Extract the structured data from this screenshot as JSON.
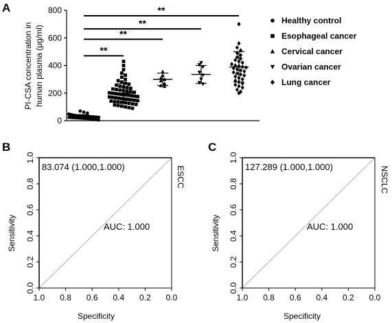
{
  "chart_data": [
    {
      "panel": "A",
      "type": "scatter",
      "ylabel_line1": "PI-CSA concentration in",
      "ylabel_line2": "human plasma (μg/ml)",
      "ylim": [
        0,
        800
      ],
      "y_ticks": [
        "0",
        "200",
        "400",
        "600",
        "800"
      ],
      "y_tick_values": [
        0,
        200,
        400,
        600,
        800
      ],
      "groups": [
        {
          "name": "Healthy control",
          "marker": "circle",
          "mean": 30,
          "sd": 14,
          "values": [
            70,
            62,
            55,
            48,
            45,
            42,
            40,
            38,
            36,
            35,
            34,
            33,
            32,
            31,
            30,
            30,
            29,
            28,
            28,
            27,
            26,
            25,
            25,
            24,
            23,
            22,
            21,
            20,
            19,
            18,
            17,
            16,
            15,
            14,
            12,
            10,
            8,
            5
          ]
        },
        {
          "name": "Esophageal cancer",
          "marker": "square",
          "mean": 200,
          "sd": 70,
          "values": [
            430,
            400,
            370,
            345,
            330,
            315,
            300,
            290,
            280,
            272,
            265,
            258,
            250,
            245,
            240,
            235,
            230,
            226,
            222,
            218,
            214,
            210,
            206,
            202,
            199,
            196,
            193,
            190,
            187,
            184,
            181,
            178,
            175,
            172,
            169,
            166,
            163,
            160,
            157,
            154,
            151,
            148,
            145,
            142,
            139,
            136,
            133,
            130,
            126,
            122,
            118,
            114,
            110,
            105,
            100,
            95,
            90
          ]
        },
        {
          "name": "Cervical cancer",
          "marker": "triangle-up",
          "mean": 300,
          "sd": 45,
          "values": [
            355,
            330,
            310,
            300,
            290,
            270,
            255,
            250
          ]
        },
        {
          "name": "Ovarian cancer",
          "marker": "triangle-down",
          "mean": 335,
          "sd": 65,
          "values": [
            420,
            405,
            390,
            350,
            330,
            300,
            275,
            265
          ]
        },
        {
          "name": "Lung cancer",
          "marker": "diamond",
          "mean": 390,
          "sd": 110,
          "values": [
            700,
            560,
            530,
            510,
            490,
            475,
            460,
            450,
            440,
            430,
            420,
            410,
            400,
            395,
            390,
            385,
            380,
            372,
            365,
            358,
            350,
            342,
            335,
            328,
            320,
            310,
            300,
            290,
            280,
            270,
            260,
            250,
            240,
            225,
            210,
            200
          ]
        }
      ],
      "significance": [
        {
          "from": 0,
          "to": 1,
          "y": 470,
          "label": "**"
        },
        {
          "from": 0,
          "to": 2,
          "y": 590,
          "label": "**"
        },
        {
          "from": 0,
          "to": 3,
          "y": 665,
          "label": "**"
        },
        {
          "from": 0,
          "to": 4,
          "y": 760,
          "label": "**"
        }
      ]
    },
    {
      "panel": "B",
      "type": "line",
      "xlabel": "Specificity",
      "ylabel": "Sensitivity",
      "x_ticks": [
        "1.0",
        "0.8",
        "0.6",
        "0.4",
        "0.2",
        "0.0"
      ],
      "y_ticks": [
        "0.0",
        "0.2",
        "0.4",
        "0.6",
        "0.8",
        "1.0"
      ],
      "xlim": [
        1.0,
        0.0
      ],
      "ylim": [
        0.0,
        1.0
      ],
      "curve": {
        "specificity": [
          1.0,
          1.0,
          0.0
        ],
        "sensitivity": [
          0.0,
          1.0,
          1.0
        ]
      },
      "reference": {
        "specificity": [
          1.0,
          0.0
        ],
        "sensitivity": [
          0.0,
          1.0
        ]
      },
      "threshold_label": "83.074 (1.000,1.000)",
      "auc_label": "AUC: 1.000",
      "side_label": "ESCC"
    },
    {
      "panel": "C",
      "type": "line",
      "xlabel": "Specificity",
      "ylabel": "Sensitivity",
      "x_ticks": [
        "1.0",
        "0.8",
        "0.6",
        "0.4",
        "0.2",
        "0.0"
      ],
      "y_ticks": [
        "0.0",
        "0.2",
        "0.4",
        "0.6",
        "0.8",
        "1.0"
      ],
      "xlim": [
        1.0,
        0.0
      ],
      "ylim": [
        0.0,
        1.0
      ],
      "curve": {
        "specificity": [
          1.0,
          1.0,
          0.0
        ],
        "sensitivity": [
          0.0,
          1.0,
          1.0
        ]
      },
      "reference": {
        "specificity": [
          1.0,
          0.0
        ],
        "sensitivity": [
          0.0,
          1.0
        ]
      },
      "threshold_label": "127.289 (1.000,1.000)",
      "auc_label": "AUC: 1.000",
      "side_label": "NSCLC"
    }
  ]
}
